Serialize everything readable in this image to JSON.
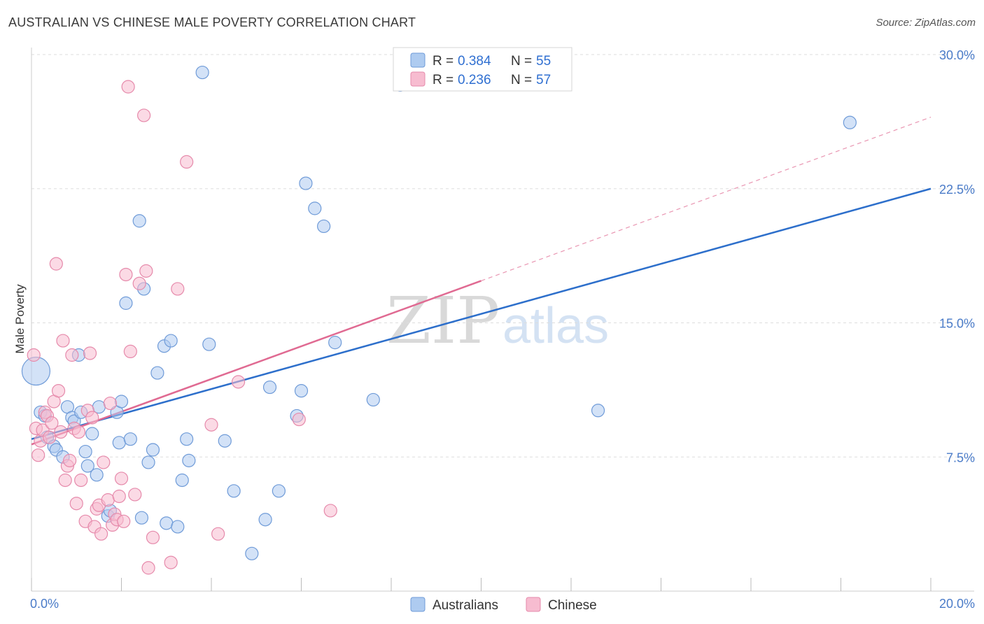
{
  "header": {
    "title": "AUSTRALIAN VS CHINESE MALE POVERTY CORRELATION CHART",
    "source": "Source: ZipAtlas.com"
  },
  "colors": {
    "australians_fill": "#aecbf0",
    "australians_stroke": "#6f9bd8",
    "australians_line": "#2d6fcb",
    "chinese_fill": "#f7bcd0",
    "chinese_stroke": "#e68aab",
    "chinese_line": "#e06a92",
    "tick_text": "#4a7bc8",
    "grid": "#dddddd"
  },
  "legend_top": {
    "rows": [
      {
        "r_label": "R =",
        "r_value": "0.384",
        "n_label": "N =",
        "n_value": "55"
      },
      {
        "r_label": "R =",
        "r_value": "0.236",
        "n_label": "N =",
        "n_value": "57"
      }
    ]
  },
  "legend_bottom": {
    "items": [
      "Australians",
      "Chinese"
    ]
  },
  "watermark": {
    "zip": "ZIP",
    "atlas": "atlas"
  },
  "chart_data": {
    "type": "scatter",
    "title": "AUSTRALIAN VS CHINESE MALE POVERTY CORRELATION CHART",
    "xlabel": "",
    "ylabel": "Male Poverty",
    "xlim": [
      0,
      20
    ],
    "ylim": [
      0,
      30
    ],
    "x_tick_labels": [
      "0.0%",
      "20.0%"
    ],
    "y_ticks": [
      7.5,
      15.0,
      22.5,
      30.0
    ],
    "y_tick_labels": [
      "7.5%",
      "15.0%",
      "22.5%",
      "30.0%"
    ],
    "grid": true,
    "legend_placement": "top-center",
    "series": [
      {
        "name": "Australians",
        "stats": {
          "R": 0.384,
          "N": 55
        },
        "trend": {
          "x0": 0,
          "y0": 8.5,
          "x1": 20,
          "y1": 22.5,
          "dashed_from": null
        },
        "points": [
          {
            "x": 0.1,
            "y": 12.3,
            "big": true
          },
          {
            "x": 0.2,
            "y": 10.0
          },
          {
            "x": 0.3,
            "y": 9.8
          },
          {
            "x": 0.35,
            "y": 8.6
          },
          {
            "x": 0.5,
            "y": 8.1
          },
          {
            "x": 0.55,
            "y": 7.9
          },
          {
            "x": 0.7,
            "y": 7.5
          },
          {
            "x": 0.8,
            "y": 10.3
          },
          {
            "x": 0.9,
            "y": 9.7
          },
          {
            "x": 0.95,
            "y": 9.5
          },
          {
            "x": 1.05,
            "y": 13.2
          },
          {
            "x": 1.1,
            "y": 10.0
          },
          {
            "x": 1.2,
            "y": 7.8
          },
          {
            "x": 1.25,
            "y": 7.0
          },
          {
            "x": 1.35,
            "y": 8.8
          },
          {
            "x": 1.45,
            "y": 6.5
          },
          {
            "x": 1.5,
            "y": 10.3
          },
          {
            "x": 1.7,
            "y": 4.2
          },
          {
            "x": 1.75,
            "y": 4.5
          },
          {
            "x": 1.9,
            "y": 10.0
          },
          {
            "x": 1.95,
            "y": 8.3
          },
          {
            "x": 2.0,
            "y": 10.6
          },
          {
            "x": 2.1,
            "y": 16.1
          },
          {
            "x": 2.2,
            "y": 8.5
          },
          {
            "x": 2.4,
            "y": 20.7
          },
          {
            "x": 2.45,
            "y": 4.1
          },
          {
            "x": 2.5,
            "y": 16.9
          },
          {
            "x": 2.6,
            "y": 7.2
          },
          {
            "x": 2.7,
            "y": 7.9
          },
          {
            "x": 2.8,
            "y": 12.2
          },
          {
            "x": 2.95,
            "y": 13.7
          },
          {
            "x": 3.0,
            "y": 3.8
          },
          {
            "x": 3.1,
            "y": 14.0
          },
          {
            "x": 3.25,
            "y": 3.6
          },
          {
            "x": 3.35,
            "y": 6.2
          },
          {
            "x": 3.45,
            "y": 8.5
          },
          {
            "x": 3.5,
            "y": 7.3
          },
          {
            "x": 3.8,
            "y": 29.0
          },
          {
            "x": 3.95,
            "y": 13.8
          },
          {
            "x": 4.3,
            "y": 8.4
          },
          {
            "x": 4.5,
            "y": 5.6
          },
          {
            "x": 4.9,
            "y": 2.1
          },
          {
            "x": 5.2,
            "y": 4.0
          },
          {
            "x": 5.3,
            "y": 11.4
          },
          {
            "x": 5.5,
            "y": 5.6
          },
          {
            "x": 5.9,
            "y": 9.8
          },
          {
            "x": 6.0,
            "y": 11.2
          },
          {
            "x": 6.1,
            "y": 22.8
          },
          {
            "x": 6.3,
            "y": 21.4
          },
          {
            "x": 6.5,
            "y": 20.4
          },
          {
            "x": 6.75,
            "y": 13.9
          },
          {
            "x": 7.6,
            "y": 10.7
          },
          {
            "x": 8.2,
            "y": 28.3
          },
          {
            "x": 12.6,
            "y": 10.1
          },
          {
            "x": 18.2,
            "y": 26.2
          }
        ]
      },
      {
        "name": "Chinese",
        "stats": {
          "R": 0.236,
          "N": 57
        },
        "trend": {
          "x0": 0,
          "y0": 8.2,
          "x1": 20,
          "y1": 26.5,
          "dashed_from": 10.0
        },
        "points": [
          {
            "x": 0.05,
            "y": 13.2
          },
          {
            "x": 0.1,
            "y": 9.1
          },
          {
            "x": 0.15,
            "y": 7.6
          },
          {
            "x": 0.2,
            "y": 8.4
          },
          {
            "x": 0.25,
            "y": 9.0
          },
          {
            "x": 0.3,
            "y": 10.0
          },
          {
            "x": 0.35,
            "y": 9.8
          },
          {
            "x": 0.4,
            "y": 8.6
          },
          {
            "x": 0.45,
            "y": 9.4
          },
          {
            "x": 0.5,
            "y": 10.6
          },
          {
            "x": 0.55,
            "y": 18.3
          },
          {
            "x": 0.6,
            "y": 11.2
          },
          {
            "x": 0.65,
            "y": 8.9
          },
          {
            "x": 0.7,
            "y": 14.0
          },
          {
            "x": 0.75,
            "y": 6.2
          },
          {
            "x": 0.8,
            "y": 7.0
          },
          {
            "x": 0.85,
            "y": 7.3
          },
          {
            "x": 0.9,
            "y": 13.2
          },
          {
            "x": 0.95,
            "y": 9.1
          },
          {
            "x": 1.0,
            "y": 4.9
          },
          {
            "x": 1.05,
            "y": 8.9
          },
          {
            "x": 1.1,
            "y": 6.2
          },
          {
            "x": 1.2,
            "y": 3.9
          },
          {
            "x": 1.25,
            "y": 10.1
          },
          {
            "x": 1.3,
            "y": 13.3
          },
          {
            "x": 1.35,
            "y": 9.7
          },
          {
            "x": 1.4,
            "y": 3.6
          },
          {
            "x": 1.45,
            "y": 4.6
          },
          {
            "x": 1.5,
            "y": 4.8
          },
          {
            "x": 1.55,
            "y": 3.2
          },
          {
            "x": 1.6,
            "y": 7.2
          },
          {
            "x": 1.7,
            "y": 5.1
          },
          {
            "x": 1.75,
            "y": 10.5
          },
          {
            "x": 1.8,
            "y": 3.7
          },
          {
            "x": 1.85,
            "y": 4.3
          },
          {
            "x": 1.9,
            "y": 4.0
          },
          {
            "x": 1.95,
            "y": 5.3
          },
          {
            "x": 2.0,
            "y": 6.3
          },
          {
            "x": 2.05,
            "y": 3.9
          },
          {
            "x": 2.1,
            "y": 17.7
          },
          {
            "x": 2.15,
            "y": 28.2
          },
          {
            "x": 2.2,
            "y": 13.4
          },
          {
            "x": 2.3,
            "y": 5.4
          },
          {
            "x": 2.4,
            "y": 17.2
          },
          {
            "x": 2.5,
            "y": 26.6
          },
          {
            "x": 2.55,
            "y": 17.9
          },
          {
            "x": 2.6,
            "y": 1.3
          },
          {
            "x": 2.7,
            "y": 3.0
          },
          {
            "x": 3.1,
            "y": 1.6
          },
          {
            "x": 3.25,
            "y": 16.9
          },
          {
            "x": 3.45,
            "y": 24.0
          },
          {
            "x": 4.0,
            "y": 9.3
          },
          {
            "x": 4.15,
            "y": 3.2
          },
          {
            "x": 4.6,
            "y": 11.7
          },
          {
            "x": 5.95,
            "y": 9.6
          },
          {
            "x": 6.65,
            "y": 4.5
          },
          {
            "x": 8.2,
            "y": 29.4
          }
        ]
      }
    ]
  }
}
